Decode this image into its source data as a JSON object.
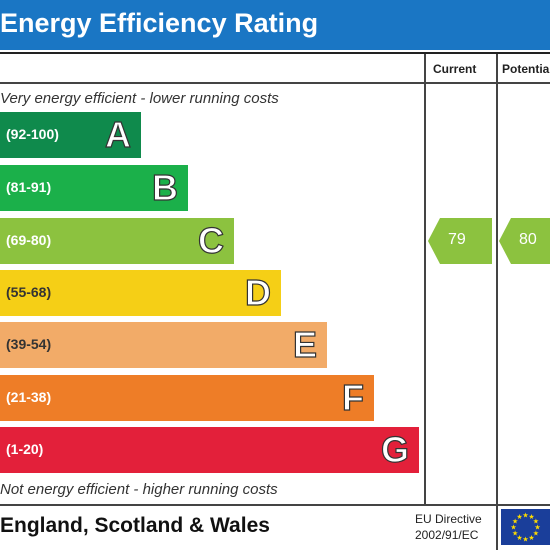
{
  "header": {
    "title": "Energy Efficiency Rating"
  },
  "columns": {
    "current": "Current",
    "potential": "Potential"
  },
  "notes": {
    "top": "Very energy efficient - lower running costs",
    "bottom": "Not energy efficient - higher running costs"
  },
  "footer": {
    "region": "England, Scotland & Wales",
    "directive_line1": "EU Directive",
    "directive_line2": "2002/91/EC"
  },
  "colors": {
    "header": "#1a76c4",
    "A": "#0f8a4c",
    "B": "#1bb04a",
    "C": "#8cc23f",
    "D": "#f5cf16",
    "E": "#f2ab68",
    "F": "#ee7d27",
    "G": "#e3203a",
    "eu_flag": "#1a3e9a",
    "eu_star": "#ffdd00"
  },
  "chart_data": {
    "type": "table",
    "bands": [
      {
        "letter": "A",
        "range": "(92-100)"
      },
      {
        "letter": "B",
        "range": "(81-91)"
      },
      {
        "letter": "C",
        "range": "(69-80)"
      },
      {
        "letter": "D",
        "range": "(55-68)"
      },
      {
        "letter": "E",
        "range": "(39-54)"
      },
      {
        "letter": "F",
        "range": "(21-38)"
      },
      {
        "letter": "G",
        "range": "(1-20)"
      }
    ],
    "current": {
      "value": "79",
      "band": "C"
    },
    "potential": {
      "value": "80",
      "band": "C"
    }
  }
}
